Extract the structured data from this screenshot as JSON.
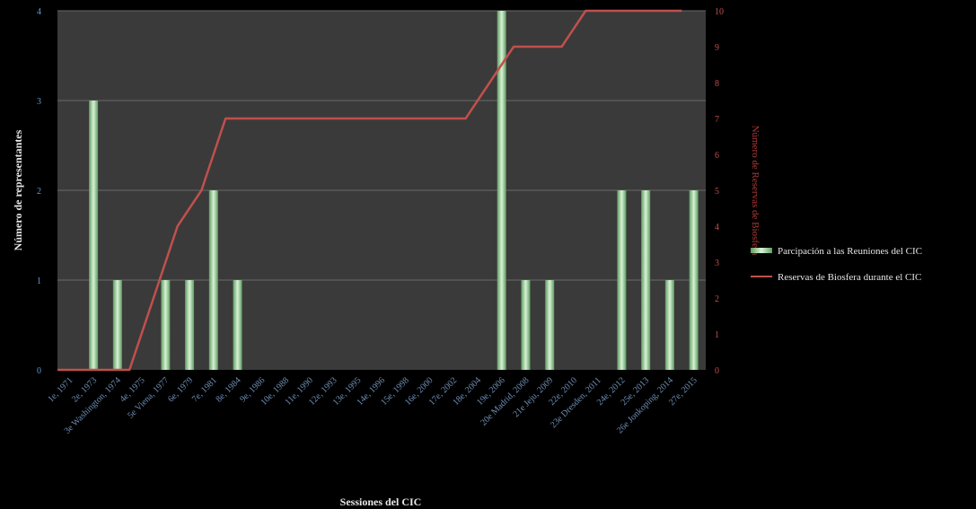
{
  "chart_data": {
    "type": "bar",
    "xlabel": "Sessiones del CIC",
    "ylabel": "Número de representantes",
    "y2label": "Número de Reservas de Biosfera",
    "ylim": [
      0,
      4
    ],
    "y2lim": [
      0,
      10
    ],
    "yticks": [
      "0",
      "1",
      "2",
      "3",
      "4"
    ],
    "y2ticks": [
      "0",
      "1",
      "2",
      "3",
      "4",
      "5",
      "6",
      "7",
      "8",
      "9",
      "10"
    ],
    "categories": [
      "1e, 1971",
      "2e, 1973",
      "3e Washington, 1974",
      "4e, 1975",
      "5e Viena, 1977",
      "6e, 1979",
      "7e, 1981",
      "8e, 1984",
      "9e, 1986",
      "10e, 1988",
      "11e, 1990",
      "12e, 1993",
      "13e, 1995",
      "14e, 1996",
      "15e, 1998",
      "16e, 2000",
      "17e, 2002",
      "18e, 2004",
      "19e, 2006",
      "20e Madrid, 2008",
      "21e Jeju, 2009",
      "22e, 2010",
      "23e Dresden, 2011",
      "24e, 2012",
      "25e, 2013",
      "26e Jonkoping, 2014",
      "27e, 2015"
    ],
    "series": [
      {
        "name": "Parcipación a las Reuniones del CIC",
        "type": "bar",
        "axis": "left",
        "color": "#8fd18f",
        "values": [
          0,
          3,
          1,
          0,
          1,
          1,
          2,
          1,
          0,
          0,
          0,
          0,
          0,
          0,
          0,
          0,
          0,
          0,
          4,
          1,
          1,
          0,
          0,
          2,
          2,
          1,
          2
        ]
      },
      {
        "name": "Reservas de Biosfera durante el CIC",
        "type": "line",
        "axis": "right",
        "color": "#c0504d",
        "values": [
          0,
          0,
          0,
          0,
          2,
          4,
          5,
          7,
          7,
          7,
          7,
          7,
          7,
          7,
          7,
          7,
          7,
          7,
          8,
          9,
          9,
          9,
          10,
          10,
          10,
          10,
          10
        ]
      }
    ],
    "legend": "right",
    "grid": true
  }
}
